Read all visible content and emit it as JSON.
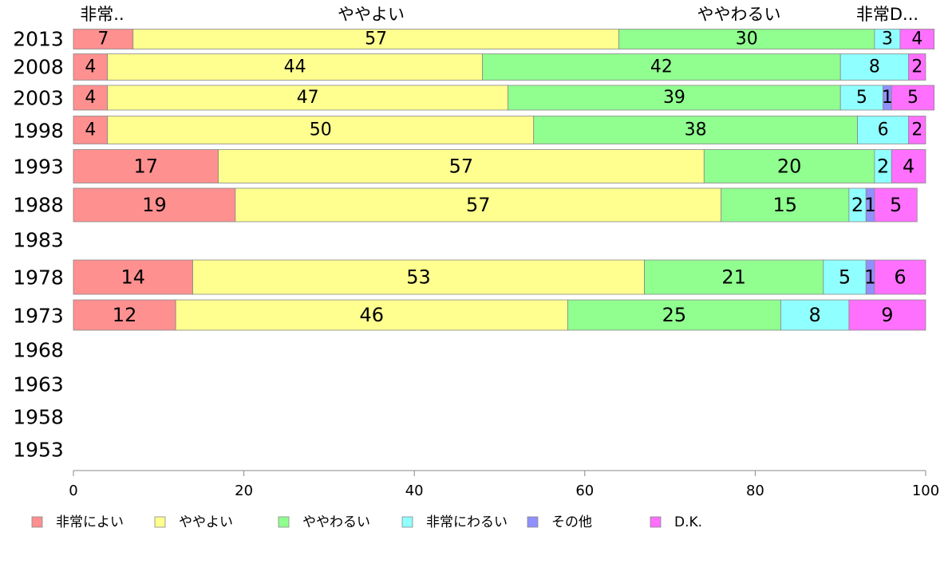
{
  "chart_data": {
    "type": "bar",
    "orientation": "horizontal",
    "stacked": true,
    "categories": [
      "2013",
      "2008",
      "2003",
      "1998",
      "1993",
      "1988",
      "1983",
      "1978",
      "1973",
      "1968",
      "1963",
      "1958",
      "1953"
    ],
    "series": [
      {
        "name": "非常によい",
        "color": "#ff9090",
        "values": [
          7,
          4,
          4,
          4,
          17,
          19,
          null,
          14,
          12,
          null,
          null,
          null,
          null
        ]
      },
      {
        "name": "ややよい",
        "color": "#ffff90",
        "values": [
          57,
          44,
          47,
          50,
          57,
          57,
          null,
          53,
          46,
          null,
          null,
          null,
          null
        ]
      },
      {
        "name": "ややわるい",
        "color": "#90ff90",
        "values": [
          30,
          42,
          39,
          38,
          20,
          15,
          null,
          21,
          25,
          null,
          null,
          null,
          null
        ]
      },
      {
        "name": "非常にわるい",
        "color": "#90ffff",
        "values": [
          3,
          8,
          5,
          6,
          2,
          2,
          null,
          5,
          8,
          null,
          null,
          null,
          null
        ]
      },
      {
        "name": "その他",
        "color": "#9090ff",
        "values": [
          0,
          0,
          1,
          0,
          0,
          1,
          null,
          1,
          0,
          null,
          null,
          null,
          null
        ]
      },
      {
        "name": "D.K.",
        "color": "#ff70ff",
        "values": [
          4,
          2,
          5,
          2,
          4,
          5,
          null,
          6,
          9,
          null,
          null,
          null,
          null
        ]
      }
    ],
    "top_labels": [
      "非常..",
      "ややよい",
      "ややわるい",
      "非常D..."
    ],
    "x_ticks": [
      "0",
      "20",
      "40",
      "60",
      "80",
      "100"
    ],
    "xlim": [
      0,
      100
    ],
    "grid": false,
    "legend_position": "bottom"
  }
}
